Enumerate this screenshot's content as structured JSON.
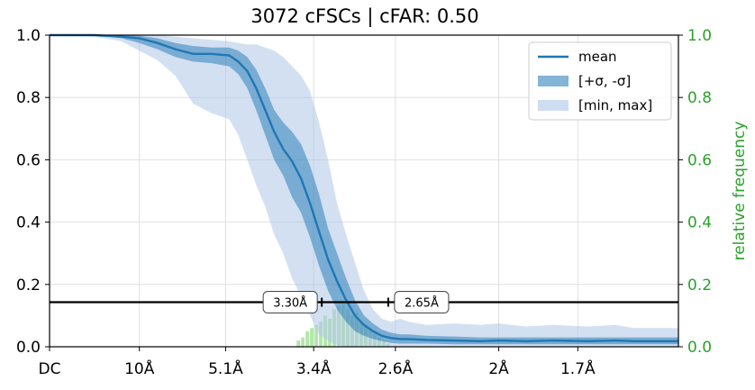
{
  "chart_data": {
    "type": "line",
    "title": "3072 cFSCs | cFAR: 0.50",
    "xlabel": "",
    "ylabel": "",
    "ylabel_right": "relative frequency",
    "ylim": [
      0,
      1.0
    ],
    "ylim_right": [
      0,
      1.0
    ],
    "grid": true,
    "legend_position": "top-right",
    "x_tick_labels": [
      "DC",
      "10Å",
      "5.1Å",
      "3.4Å",
      "2.6Å",
      "2Å",
      "1.7Å"
    ],
    "x_tick_values": [
      0,
      0.1,
      0.196,
      0.294,
      0.385,
      0.5,
      0.588
    ],
    "x_range": [
      0,
      0.7
    ],
    "y_tick_labels": [
      "0.0",
      "0.2",
      "0.4",
      "0.6",
      "0.8",
      "1.0"
    ],
    "y_tick_labels_right": [
      "0.0",
      "0.2",
      "0.4",
      "0.6",
      "0.8",
      "1.0"
    ],
    "colors": {
      "mean": "#1f77b4",
      "sigma_band": "#1f77b4",
      "minmax_band": "#aec7e8",
      "histogram": "#98df8a",
      "right_axis": "#2ca02c",
      "threshold": "#000000"
    },
    "threshold": 0.143,
    "annotations": [
      {
        "text": "3.30Å",
        "x": 0.303
      },
      {
        "text": "2.65Å",
        "x": 0.377
      }
    ],
    "legend": [
      {
        "label": "mean",
        "kind": "line"
      },
      {
        "label": "[+σ, -σ]",
        "kind": "sigma"
      },
      {
        "label": "[min, max]",
        "kind": "minmax"
      }
    ],
    "x": [
      0,
      0.05,
      0.08,
      0.1,
      0.12,
      0.14,
      0.16,
      0.18,
      0.2,
      0.21,
      0.22,
      0.23,
      0.24,
      0.25,
      0.26,
      0.27,
      0.28,
      0.29,
      0.3,
      0.31,
      0.32,
      0.33,
      0.34,
      0.35,
      0.36,
      0.37,
      0.38,
      0.39,
      0.4,
      0.42,
      0.45,
      0.48,
      0.5,
      0.53,
      0.56,
      0.6,
      0.63,
      0.65,
      0.7
    ],
    "mean": [
      1.0,
      1.0,
      0.995,
      0.99,
      0.975,
      0.955,
      0.94,
      0.94,
      0.935,
      0.915,
      0.885,
      0.83,
      0.76,
      0.69,
      0.635,
      0.595,
      0.54,
      0.46,
      0.37,
      0.28,
      0.21,
      0.15,
      0.1,
      0.07,
      0.05,
      0.035,
      0.028,
      0.025,
      0.025,
      0.022,
      0.02,
      0.018,
      0.02,
      0.018,
      0.02,
      0.018,
      0.02,
      0.018,
      0.018
    ],
    "sigma_upper": [
      1.0,
      1.0,
      1.0,
      0.998,
      0.99,
      0.975,
      0.965,
      0.96,
      0.96,
      0.95,
      0.93,
      0.89,
      0.83,
      0.76,
      0.72,
      0.69,
      0.65,
      0.58,
      0.49,
      0.38,
      0.3,
      0.22,
      0.15,
      0.1,
      0.075,
      0.055,
      0.045,
      0.04,
      0.04,
      0.035,
      0.033,
      0.03,
      0.03,
      0.03,
      0.03,
      0.03,
      0.03,
      0.03,
      0.03
    ],
    "sigma_lower": [
      1.0,
      1.0,
      0.99,
      0.975,
      0.955,
      0.93,
      0.915,
      0.91,
      0.9,
      0.875,
      0.83,
      0.76,
      0.68,
      0.6,
      0.55,
      0.48,
      0.43,
      0.35,
      0.26,
      0.18,
      0.12,
      0.08,
      0.05,
      0.035,
      0.025,
      0.018,
      0.012,
      0.01,
      0.01,
      0.01,
      0.008,
      0.008,
      0.008,
      0.008,
      0.008,
      0.008,
      0.008,
      0.008,
      0.008
    ],
    "max": [
      1.0,
      1.0,
      1.0,
      1.0,
      1.0,
      0.995,
      0.99,
      0.985,
      0.98,
      0.975,
      0.97,
      0.97,
      0.96,
      0.95,
      0.93,
      0.9,
      0.87,
      0.82,
      0.72,
      0.6,
      0.46,
      0.36,
      0.27,
      0.18,
      0.12,
      0.09,
      0.08,
      0.09,
      0.08,
      0.07,
      0.075,
      0.07,
      0.075,
      0.065,
      0.07,
      0.065,
      0.07,
      0.06,
      0.06
    ],
    "min": [
      1.0,
      0.995,
      0.98,
      0.95,
      0.92,
      0.87,
      0.78,
      0.75,
      0.73,
      0.68,
      0.6,
      0.52,
      0.45,
      0.36,
      0.3,
      0.22,
      0.16,
      0.1,
      0.04,
      0.02,
      0.005,
      0.0,
      0.0,
      0.0,
      0.0,
      0.0,
      0.0,
      0.0,
      0.0,
      0.0,
      0.0,
      0.0,
      0.0,
      0.0,
      0.0,
      0.0,
      0.0,
      0.0,
      0.0
    ],
    "histogram": {
      "bins": [
        0.275,
        0.28,
        0.285,
        0.29,
        0.295,
        0.3,
        0.305,
        0.31,
        0.315,
        0.32,
        0.325,
        0.33,
        0.335,
        0.34,
        0.345,
        0.35,
        0.355,
        0.36,
        0.365,
        0.37,
        0.375
      ],
      "values": [
        0.02,
        0.03,
        0.05,
        0.06,
        0.07,
        0.08,
        0.1,
        0.09,
        0.12,
        0.13,
        0.14,
        0.12,
        0.1,
        0.11,
        0.08,
        0.07,
        0.05,
        0.04,
        0.03,
        0.02,
        0.01
      ]
    }
  }
}
